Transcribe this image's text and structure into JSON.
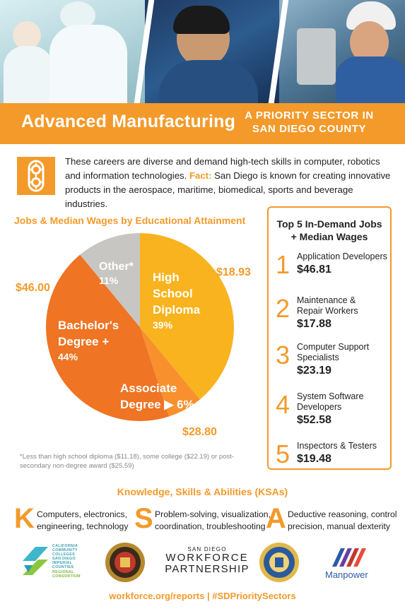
{
  "header": {
    "title": "Advanced Manufacturing",
    "subtitle_line1": "A PRIORITY SECTOR IN",
    "subtitle_line2": "SAN DIEGO COUNTY"
  },
  "intro": {
    "icon": "gears-icon",
    "text": "These careers are diverse and demand high-tech skills in computer, robotics and information technologies. ",
    "fact_label": "Fact:",
    "fact_text": " San Diego is known for creating innovative products in the aerospace, maritime, biomedical, sports and beverage industries."
  },
  "chart_data": {
    "type": "pie",
    "title": "Jobs & Median Wages by Educational Attainment",
    "slices": [
      {
        "label_lines": [
          "High",
          "School",
          "Diploma"
        ],
        "percent": 39,
        "percent_label": "39%",
        "wage": "$18.93",
        "color": "#f9b31f"
      },
      {
        "label_lines": [
          "Associate",
          "Degree"
        ],
        "percent": 6,
        "percent_label": "6%",
        "wage": "$28.80",
        "color": "#f8902e"
      },
      {
        "label_lines": [
          "Bachelor's",
          "Degree +"
        ],
        "percent": 44,
        "percent_label": "44%",
        "wage": "$46.00",
        "color": "#ef7423"
      },
      {
        "label_lines": [
          "Other*"
        ],
        "percent": 11,
        "percent_label": "11%",
        "wage": "",
        "color": "#c7c6c2"
      }
    ],
    "footnote": "*Less than high school diploma ($11.18), some college ($22.19) or post-secondary non-degree award ($25.59)"
  },
  "top_jobs": {
    "title_line1": "Top 5 In-Demand Jobs",
    "title_line2": "+ Median Wages",
    "items": [
      {
        "rank": "1",
        "name_lines": [
          "Application Developers"
        ],
        "wage": "$46.81"
      },
      {
        "rank": "2",
        "name_lines": [
          "Maintenance &",
          "Repair Workers"
        ],
        "wage": "$17.88"
      },
      {
        "rank": "3",
        "name_lines": [
          "Computer Support",
          "Specialists"
        ],
        "wage": "$23.19"
      },
      {
        "rank": "4",
        "name_lines": [
          "System Software",
          "Developers"
        ],
        "wage": "$52.58"
      },
      {
        "rank": "5",
        "name_lines": [
          "Inspectors & Testers"
        ],
        "wage": "$19.48"
      }
    ]
  },
  "ksa": {
    "title": "Knowledge, Skills & Abilities (KSAs)",
    "items": [
      {
        "letter": "K",
        "line1": "Computers, electronics,",
        "line2": "engineering, technology"
      },
      {
        "letter": "S",
        "line1": "Problem-solving, visualization,",
        "line2": "coordination, troubleshooting"
      },
      {
        "letter": "A",
        "line1": "Deductive reasoning, control",
        "line2": "precision, manual dexterity"
      }
    ]
  },
  "logos": {
    "ccc_line1": "CALIFORNIA",
    "ccc_line2": "COMMUNITY",
    "ccc_line3": "COLLEGES",
    "ccc_line4": "SAN DIEGO",
    "ccc_line5": "IMPERIAL",
    "ccc_line6": "COUNTIES",
    "ccc_line7": "REGIONAL",
    "ccc_line8": "CONSORTIUM",
    "wp_line1": "SAN DIEGO",
    "wp_line2": "WORKFORCE",
    "wp_line3": "PARTNERSHIP",
    "manpower": "Manpower"
  },
  "footer": {
    "link": "workforce.org/reports | #SDPrioritySectors"
  }
}
